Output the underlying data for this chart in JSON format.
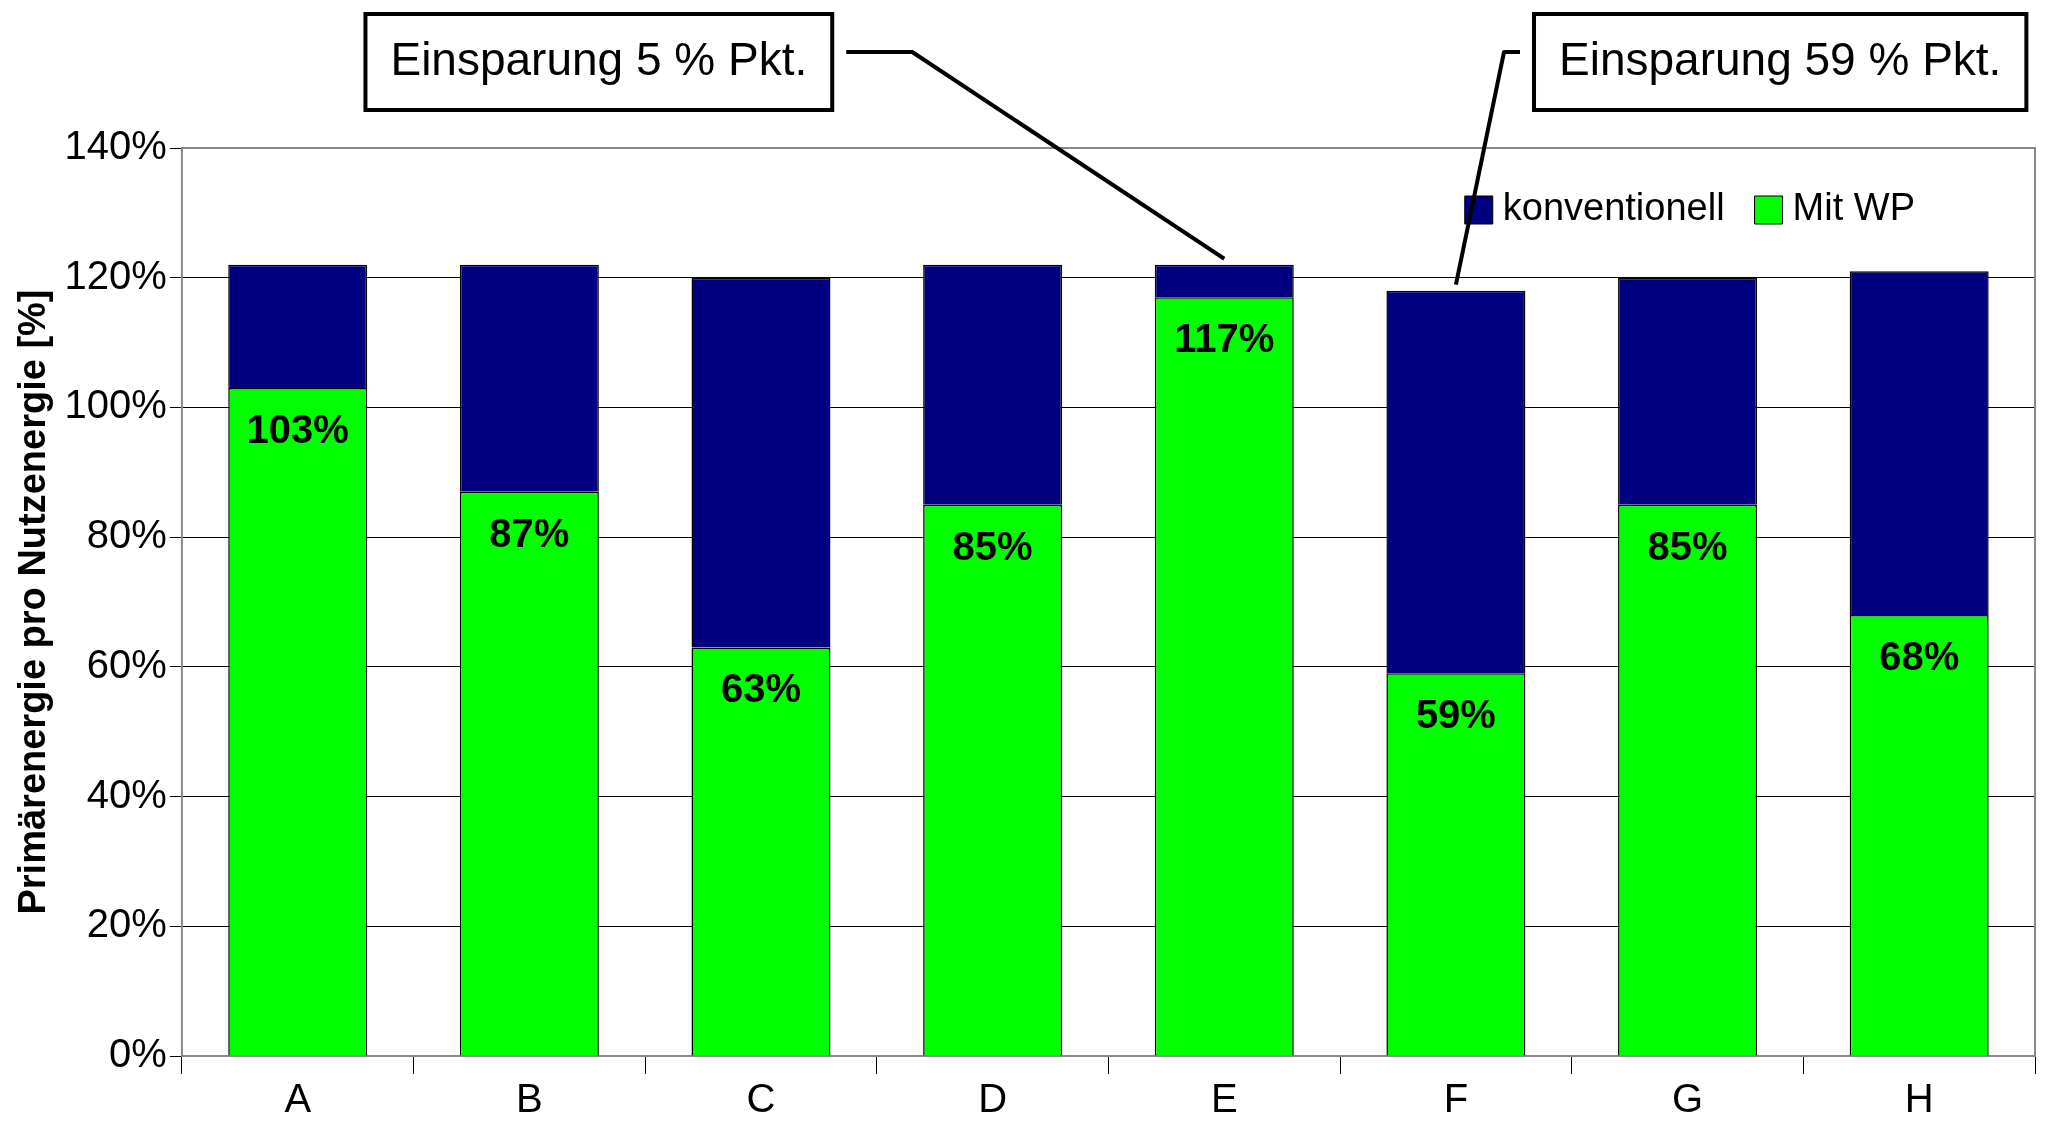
{
  "chart_data": {
    "type": "bar",
    "stacked": true,
    "ylabel": "Primärenergie pro Nutzenergie [%]",
    "categories": [
      "A",
      "B",
      "C",
      "D",
      "E",
      "F",
      "G",
      "H"
    ],
    "series": [
      {
        "name": "Mit WP",
        "color": "#00ff00",
        "values": [
          103,
          87,
          63,
          85,
          117,
          59,
          85,
          68
        ],
        "value_labels": [
          "103%",
          "87%",
          "63%",
          "85%",
          "117%",
          "59%",
          "85%",
          "68%"
        ]
      },
      {
        "name": "konventionell",
        "color": "#000080",
        "values": [
          19,
          35,
          57,
          37,
          5,
          59,
          35,
          53
        ]
      }
    ],
    "ylim": [
      0,
      140
    ],
    "yticks": [
      {
        "value": 0,
        "label": "0%"
      },
      {
        "value": 20,
        "label": "20%"
      },
      {
        "value": 40,
        "label": "40%"
      },
      {
        "value": 60,
        "label": "60%"
      },
      {
        "value": 80,
        "label": "80%"
      },
      {
        "value": 100,
        "label": "100%"
      },
      {
        "value": 120,
        "label": "120%"
      },
      {
        "value": 140,
        "label": "140%"
      }
    ],
    "grid": "y",
    "legend": "top right",
    "annotations": [
      {
        "text": "Einsparung 5 % Pkt.",
        "x": "E",
        "y": 122
      },
      {
        "text": "Einsparung 59 % Pkt.",
        "x": "F",
        "y": 118
      }
    ]
  }
}
